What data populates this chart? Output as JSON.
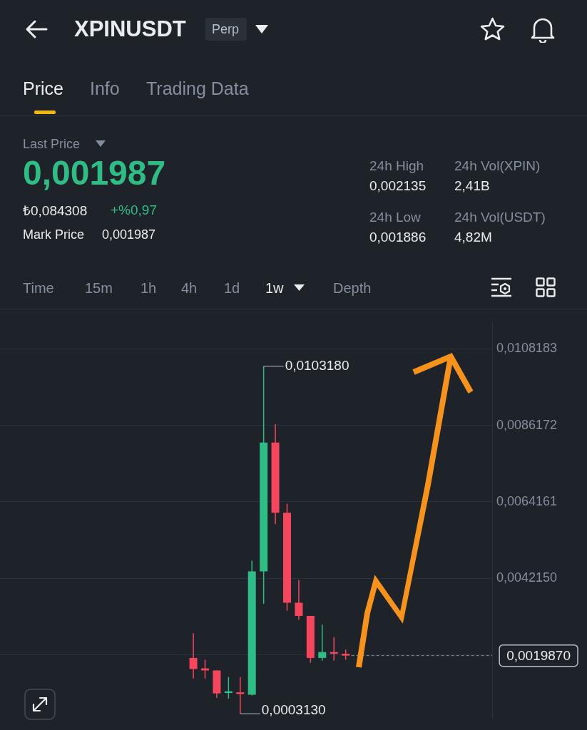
{
  "chart_data": {
    "type": "candlestick",
    "title": "XPINUSDT",
    "subtitle": "Perp",
    "categories": [
      null,
      null,
      null,
      null,
      null,
      null,
      null,
      null,
      null,
      null,
      null,
      null,
      null,
      null,
      null,
      null,
      null,
      null,
      null,
      null,
      null,
      null,
      null,
      null,
      null,
      null,
      null,
      null,
      null,
      null,
      null,
      null,
      null,
      null,
      null,
      null,
      null,
      null,
      null,
      null,
      null,
      null
    ],
    "ohlc": [
      null,
      null,
      null,
      null,
      null,
      null,
      null,
      null,
      null,
      null,
      null,
      null,
      null,
      null,
      null,
      null,
      [
        0.00192,
        0.00263,
        0.00133,
        0.0016
      ],
      [
        0.00162,
        0.00187,
        0.00133,
        0.00156
      ],
      [
        0.00156,
        0.00156,
        0.00077,
        0.0009
      ],
      [
        0.00091,
        0.00137,
        0.00075,
        0.00096
      ],
      [
        0.00093,
        0.00137,
        0.000313,
        0.00088
      ],
      [
        0.00086,
        0.00472,
        0.00084,
        0.00441
      ],
      [
        0.00441,
        0.010318,
        0.00348,
        0.00812
      ],
      [
        0.00812,
        0.00865,
        0.00577,
        0.0061
      ],
      [
        0.0061,
        0.00636,
        0.00328,
        0.00351
      ],
      [
        0.00351,
        0.00416,
        0.00302,
        0.00313
      ],
      [
        0.00313,
        0.00313,
        0.00178,
        0.00192
      ],
      [
        0.00192,
        0.00288,
        0.00184,
        0.00209
      ],
      [
        0.00209,
        0.00252,
        0.00184,
        0.00204
      ],
      [
        0.00204,
        0.00216,
        0.00187,
        0.001987
      ],
      null,
      null,
      null,
      null,
      null,
      null,
      null,
      null,
      null,
      null,
      null,
      null
    ],
    "colors": [
      null,
      null,
      null,
      null,
      null,
      null,
      null,
      null,
      null,
      null,
      null,
      null,
      null,
      null,
      null,
      null,
      "#f6465d",
      "#f6465d",
      "#f6465d",
      "#2ebd85",
      "#f6465d",
      "#2ebd85",
      "#2ebd85",
      "#f6465d",
      "#f6465d",
      "#f6465d",
      "#f6465d",
      "#2ebd85",
      "#f6465d",
      "#f6465d",
      null,
      null,
      null,
      null,
      null,
      null,
      null,
      null,
      null,
      null,
      null,
      null
    ],
    "ylim": [
      0.00019,
      0.01159
    ],
    "yticks": [
      {
        "value": 0.0020139,
        "label": null
      },
      {
        "value": 0.004215,
        "label": "0,0042150"
      },
      {
        "value": 0.0064161,
        "label": "0,0064161"
      },
      {
        "value": 0.0086172,
        "label": "0,0086172"
      },
      {
        "value": 0.0108183,
        "label": "0,0108183"
      }
    ],
    "grid": "y",
    "tick_labels": "y",
    "ref_lines": [
      {
        "axis": "y",
        "value": 0.001987,
        "label": "0,0019870",
        "line_style": "dashed",
        "color": "#848e9c"
      }
    ],
    "annotations": [
      "Price",
      "Info",
      "Trading Data",
      "Last Price",
      "0,001987",
      "₺0,084308",
      "+%0,97",
      "Mark Price",
      "0,001987",
      "24h High",
      "0,002135",
      "24h Vol(XPIN)",
      "2,41B",
      "24h Low",
      "0,001886",
      "24h Vol(USDT)",
      "4,82M",
      "Time",
      "15m",
      "1h",
      "4h",
      "1d",
      "1w",
      "Depth",
      "0,0103180",
      "0,0003130"
    ]
  }
}
